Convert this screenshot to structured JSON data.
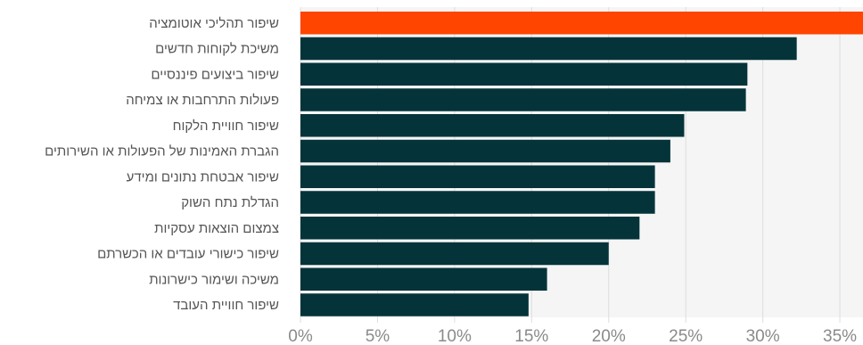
{
  "chart_data": {
    "type": "bar",
    "orientation": "horizontal",
    "title": "",
    "xlabel": "",
    "ylabel": "",
    "categories": [
      "שיפור תהליכי אוטומציה",
      "משיכת לקוחות חדשים",
      "שיפור ביצועים פיננסיים",
      "פעולות התרחבות או צמיחה",
      "שיפור חוויית הלקוח",
      "הגברת האמינות של הפעולות או השירותים",
      "שיפור אבטחת נתונים ומידע",
      "הגדלת נתח השוק",
      "צמצום הוצאות עסקיות",
      "שיפור כישורי עובדים או הכשרתם",
      "משיכה ושימור כישרונות",
      "שיפור חוויית העובד"
    ],
    "values": [
      37,
      32.2,
      29,
      28.9,
      24.9,
      24,
      23,
      23,
      22,
      20,
      16,
      14.8
    ],
    "value_unit": "%",
    "xlim": [
      0,
      36.5
    ],
    "xticks": [
      0,
      5,
      10,
      15,
      20,
      25,
      30,
      35
    ],
    "xtick_labels": [
      "0%",
      "5%",
      "10%",
      "15%",
      "20%",
      "25%",
      "30%",
      "35%"
    ],
    "grid": true,
    "colors": {
      "highlight": "#ff4500",
      "bar": "#04343a",
      "plot_background": "#f5f5f5",
      "grid": "#dddddd"
    },
    "highlight_index": 0
  }
}
